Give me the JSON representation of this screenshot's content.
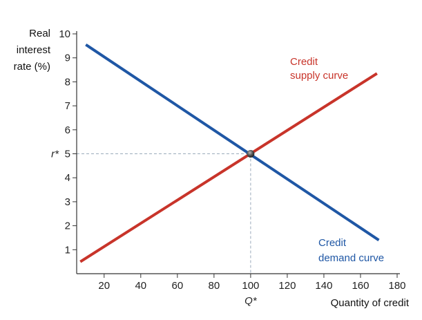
{
  "chart_data": {
    "type": "line",
    "ylabel_lines": [
      "Real",
      "interest",
      "rate (%)"
    ],
    "xlabel": "Quantity of credit",
    "xlim": [
      5,
      180
    ],
    "ylim": [
      0,
      10
    ],
    "x_ticks": [
      "20",
      "40",
      "60",
      "80",
      "100",
      "120",
      "140",
      "160",
      "180"
    ],
    "x_tick_values": [
      20,
      40,
      60,
      80,
      100,
      120,
      140,
      160,
      180
    ],
    "y_ticks": [
      "1",
      "2",
      "3",
      "4",
      "5",
      "6",
      "7",
      "8",
      "9",
      "10"
    ],
    "y_tick_values": [
      1,
      2,
      3,
      4,
      5,
      6,
      7,
      8,
      9,
      10
    ],
    "equilibrium": {
      "x": 100,
      "y": 5,
      "x_label": "Q*",
      "y_label": "r*"
    },
    "series": [
      {
        "key": "supply",
        "label_lines": [
          "Credit",
          "supply curve"
        ],
        "color": "#c8342a",
        "points": [
          [
            7,
            0.5
          ],
          [
            169,
            8.35
          ]
        ]
      },
      {
        "key": "demand",
        "label_lines": [
          "Credit",
          "demand curve"
        ],
        "color": "#1f57a5",
        "points": [
          [
            10,
            9.55
          ],
          [
            170,
            1.4
          ]
        ]
      }
    ],
    "grid": false,
    "guide_line_color": "#9aaabb",
    "axis_color": "#333333",
    "point_color": "#555555"
  }
}
